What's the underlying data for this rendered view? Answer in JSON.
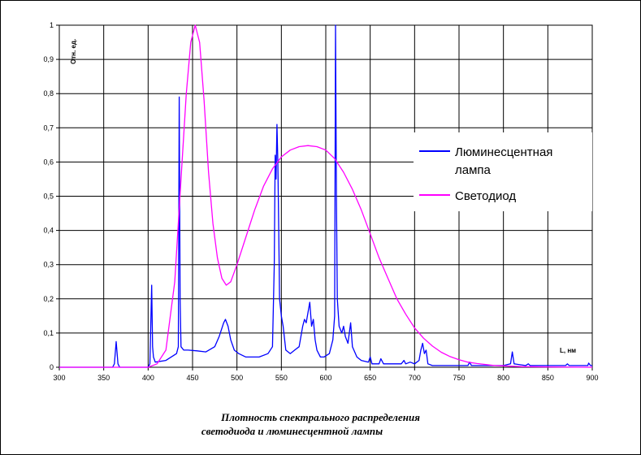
{
  "chart_data": {
    "type": "line",
    "ylabel": "Отн. ед.",
    "xlabel": "L, нм",
    "xlim": [
      300,
      900
    ],
    "ylim": [
      0,
      1
    ],
    "x_ticks": [
      "300",
      "350",
      "400",
      "450",
      "500",
      "550",
      "600",
      "650",
      "700",
      "750",
      "800",
      "850",
      "900"
    ],
    "y_ticks": [
      "0",
      "0,1",
      "0,2",
      "0,3",
      "0,4",
      "0,5",
      "0,6",
      "0,7",
      "0,8",
      "0,9",
      "1"
    ],
    "grid": true,
    "legend_position": "right",
    "caption_lines": [
      "Плотность спектрального распределения",
      "светодиода и люминесцентной лампы"
    ],
    "series": [
      {
        "name": "Люминесцентная лампа",
        "color": "#0000ff",
        "points": [
          [
            300,
            0
          ],
          [
            360,
            0
          ],
          [
            362,
            0.01
          ],
          [
            364,
            0.075
          ],
          [
            366,
            0.01
          ],
          [
            368,
            0
          ],
          [
            400,
            0
          ],
          [
            402,
            0.01
          ],
          [
            404,
            0.24
          ],
          [
            405,
            0.06
          ],
          [
            406,
            0.03
          ],
          [
            408,
            0.015
          ],
          [
            420,
            0.02
          ],
          [
            432,
            0.04
          ],
          [
            434,
            0.06
          ],
          [
            435,
            0.79
          ],
          [
            436,
            0.2
          ],
          [
            437,
            0.06
          ],
          [
            440,
            0.05
          ],
          [
            445,
            0.05
          ],
          [
            455,
            0.048
          ],
          [
            465,
            0.045
          ],
          [
            475,
            0.06
          ],
          [
            480,
            0.09
          ],
          [
            485,
            0.13
          ],
          [
            487,
            0.14
          ],
          [
            490,
            0.12
          ],
          [
            493,
            0.08
          ],
          [
            497,
            0.05
          ],
          [
            502,
            0.04
          ],
          [
            510,
            0.03
          ],
          [
            525,
            0.03
          ],
          [
            535,
            0.04
          ],
          [
            540,
            0.06
          ],
          [
            542,
            0.3
          ],
          [
            543,
            0.62
          ],
          [
            544,
            0.55
          ],
          [
            545,
            0.71
          ],
          [
            546,
            0.6
          ],
          [
            547,
            0.4
          ],
          [
            548,
            0.2
          ],
          [
            550,
            0.15
          ],
          [
            552,
            0.12
          ],
          [
            555,
            0.05
          ],
          [
            560,
            0.04
          ],
          [
            565,
            0.05
          ],
          [
            570,
            0.06
          ],
          [
            574,
            0.12
          ],
          [
            576,
            0.14
          ],
          [
            578,
            0.13
          ],
          [
            580,
            0.16
          ],
          [
            582,
            0.19
          ],
          [
            584,
            0.12
          ],
          [
            586,
            0.14
          ],
          [
            588,
            0.08
          ],
          [
            590,
            0.05
          ],
          [
            594,
            0.03
          ],
          [
            598,
            0.03
          ],
          [
            604,
            0.04
          ],
          [
            608,
            0.08
          ],
          [
            610,
            0.15
          ],
          [
            611,
            1.0
          ],
          [
            612,
            0.5
          ],
          [
            613,
            0.2
          ],
          [
            615,
            0.12
          ],
          [
            618,
            0.1
          ],
          [
            620,
            0.12
          ],
          [
            622,
            0.09
          ],
          [
            625,
            0.07
          ],
          [
            628,
            0.13
          ],
          [
            630,
            0.06
          ],
          [
            635,
            0.03
          ],
          [
            640,
            0.02
          ],
          [
            648,
            0.015
          ],
          [
            650,
            0.03
          ],
          [
            652,
            0.01
          ],
          [
            660,
            0.01
          ],
          [
            662,
            0.025
          ],
          [
            665,
            0.01
          ],
          [
            670,
            0.01
          ],
          [
            685,
            0.01
          ],
          [
            688,
            0.02
          ],
          [
            690,
            0.01
          ],
          [
            695,
            0.015
          ],
          [
            700,
            0.01
          ],
          [
            705,
            0.02
          ],
          [
            707,
            0.05
          ],
          [
            709,
            0.07
          ],
          [
            711,
            0.04
          ],
          [
            713,
            0.05
          ],
          [
            715,
            0.01
          ],
          [
            720,
            0.005
          ],
          [
            750,
            0.005
          ],
          [
            760,
            0.005
          ],
          [
            762,
            0.015
          ],
          [
            764,
            0.005
          ],
          [
            800,
            0.005
          ],
          [
            808,
            0.01
          ],
          [
            810,
            0.045
          ],
          [
            812,
            0.01
          ],
          [
            825,
            0.005
          ],
          [
            828,
            0.01
          ],
          [
            830,
            0.005
          ],
          [
            870,
            0.005
          ],
          [
            872,
            0.01
          ],
          [
            874,
            0.005
          ],
          [
            895,
            0.005
          ],
          [
            896,
            0.012
          ],
          [
            898,
            0.005
          ],
          [
            900,
            0.005
          ]
        ]
      },
      {
        "name": "Светодиод",
        "color": "#ff00ff",
        "points": [
          [
            300,
            0
          ],
          [
            400,
            0
          ],
          [
            410,
            0.01
          ],
          [
            420,
            0.05
          ],
          [
            430,
            0.25
          ],
          [
            437,
            0.55
          ],
          [
            443,
            0.8
          ],
          [
            448,
            0.95
          ],
          [
            453,
            1.0
          ],
          [
            458,
            0.95
          ],
          [
            463,
            0.78
          ],
          [
            468,
            0.57
          ],
          [
            473,
            0.42
          ],
          [
            478,
            0.32
          ],
          [
            483,
            0.26
          ],
          [
            488,
            0.24
          ],
          [
            493,
            0.25
          ],
          [
            500,
            0.3
          ],
          [
            510,
            0.38
          ],
          [
            520,
            0.46
          ],
          [
            530,
            0.53
          ],
          [
            540,
            0.58
          ],
          [
            550,
            0.615
          ],
          [
            560,
            0.635
          ],
          [
            570,
            0.645
          ],
          [
            580,
            0.648
          ],
          [
            590,
            0.645
          ],
          [
            600,
            0.635
          ],
          [
            610,
            0.61
          ],
          [
            620,
            0.57
          ],
          [
            630,
            0.52
          ],
          [
            640,
            0.46
          ],
          [
            650,
            0.39
          ],
          [
            660,
            0.32
          ],
          [
            670,
            0.26
          ],
          [
            680,
            0.2
          ],
          [
            690,
            0.155
          ],
          [
            700,
            0.115
          ],
          [
            710,
            0.085
          ],
          [
            720,
            0.062
          ],
          [
            730,
            0.044
          ],
          [
            740,
            0.031
          ],
          [
            750,
            0.022
          ],
          [
            760,
            0.015
          ],
          [
            770,
            0.011
          ],
          [
            780,
            0.008
          ],
          [
            790,
            0.005
          ],
          [
            800,
            0.004
          ],
          [
            820,
            0.002
          ],
          [
            850,
            0.001
          ],
          [
            900,
            0
          ]
        ]
      }
    ]
  }
}
